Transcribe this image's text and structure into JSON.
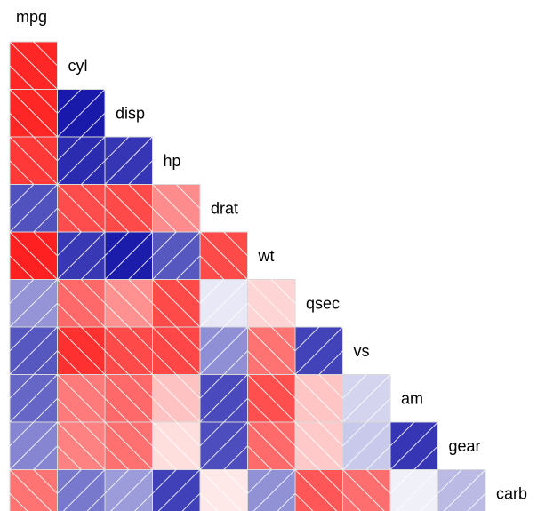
{
  "chart_data": {
    "type": "heatmap",
    "title": "",
    "subtitle": "",
    "xlabel": "",
    "ylabel": "",
    "layout": "lower-triangle",
    "variables": [
      "mpg",
      "cyl",
      "disp",
      "hp",
      "drat",
      "wt",
      "qsec",
      "vs",
      "am",
      "gear",
      "carb"
    ],
    "value_range": [
      -1,
      1
    ],
    "colors": {
      "negative": "#ff0000",
      "zero": "#ffffff",
      "positive": "#0000a0",
      "cell_border": "#d9d9d9",
      "hatch_line": "#ffffff"
    },
    "hatch_rule": "diagonal line direction follows sign of correlation",
    "matrix_lower": [
      [
        -0.85
      ],
      [
        -0.85,
        0.9
      ],
      [
        -0.78,
        0.83,
        0.79
      ],
      [
        0.68,
        -0.7,
        -0.71,
        -0.45
      ],
      [
        -0.87,
        0.78,
        0.89,
        0.66,
        -0.71
      ],
      [
        0.42,
        -0.59,
        -0.43,
        -0.71,
        0.09,
        -0.17
      ],
      [
        0.66,
        -0.81,
        -0.71,
        -0.72,
        0.44,
        -0.55,
        0.74
      ],
      [
        0.6,
        -0.52,
        -0.59,
        -0.24,
        0.71,
        -0.69,
        -0.23,
        0.17
      ],
      [
        0.48,
        -0.49,
        -0.56,
        -0.13,
        0.7,
        -0.58,
        -0.21,
        0.21,
        0.79
      ],
      [
        -0.55,
        0.53,
        0.39,
        0.75,
        -0.09,
        0.43,
        -0.66,
        -0.57,
        0.06,
        0.27
      ]
    ]
  }
}
